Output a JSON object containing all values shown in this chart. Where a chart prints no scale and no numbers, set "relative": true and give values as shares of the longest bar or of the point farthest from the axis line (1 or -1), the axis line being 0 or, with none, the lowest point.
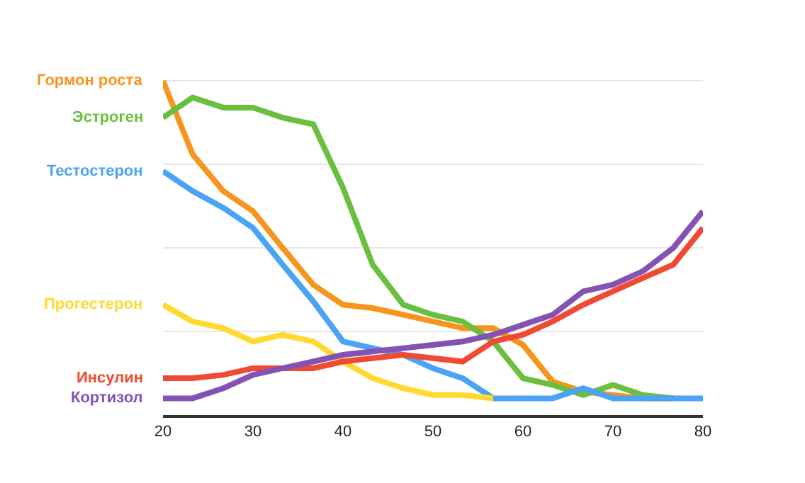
{
  "chart_data": {
    "type": "line",
    "relative": true,
    "x": [
      20,
      23.3,
      26.7,
      30,
      33.3,
      36.7,
      40,
      43.3,
      46.7,
      50,
      53.3,
      56.7,
      60,
      63.3,
      66.7,
      70,
      73.3,
      76.7,
      80
    ],
    "xlim": [
      20,
      80
    ],
    "xticks": [
      20,
      30,
      40,
      50,
      60,
      70,
      80
    ],
    "grid": "y",
    "legend": false,
    "marker": "none",
    "line_style": "solid",
    "tick_labels": "x",
    "series": [
      {
        "name": "Гормон роста",
        "color": "#f7941d",
        "values": [
          1.0,
          0.78,
          0.67,
          0.61,
          0.5,
          0.39,
          0.33,
          0.32,
          0.3,
          0.28,
          0.26,
          0.26,
          0.21,
          0.1,
          0.07,
          0.06,
          0.05,
          0.05,
          null
        ]
      },
      {
        "name": "Эстроген",
        "color": "#6abf3f",
        "values": [
          0.89,
          0.95,
          0.92,
          0.92,
          0.89,
          0.87,
          0.68,
          0.45,
          0.33,
          0.3,
          0.28,
          0.22,
          0.11,
          0.09,
          0.06,
          0.09,
          0.06,
          0.05,
          null
        ]
      },
      {
        "name": "Тестостерон",
        "color": "#4aa3f5",
        "values": [
          0.73,
          0.67,
          0.62,
          0.56,
          0.45,
          0.34,
          0.22,
          0.2,
          0.18,
          0.14,
          0.11,
          0.05,
          0.05,
          0.05,
          0.08,
          0.05,
          0.05,
          0.05,
          0.05
        ]
      },
      {
        "name": "Прогестерон",
        "color": "#ffd92f",
        "values": [
          0.33,
          0.28,
          0.26,
          0.22,
          0.24,
          0.22,
          0.16,
          0.11,
          0.08,
          0.06,
          0.06,
          0.05,
          null,
          null,
          null,
          null,
          null,
          null,
          null
        ]
      },
      {
        "name": "Инсулин",
        "color": "#f04a32",
        "values": [
          0.11,
          0.11,
          0.12,
          0.14,
          0.14,
          0.14,
          0.16,
          0.17,
          0.18,
          0.17,
          0.16,
          0.22,
          0.24,
          0.28,
          0.33,
          0.37,
          0.41,
          0.45,
          0.56
        ]
      },
      {
        "name": "Кортизол",
        "color": "#8452b5",
        "values": [
          0.05,
          0.05,
          0.08,
          0.12,
          0.14,
          0.16,
          0.18,
          0.19,
          0.2,
          0.21,
          0.22,
          0.24,
          0.27,
          0.3,
          0.37,
          0.39,
          0.43,
          0.5,
          0.61
        ]
      }
    ]
  }
}
